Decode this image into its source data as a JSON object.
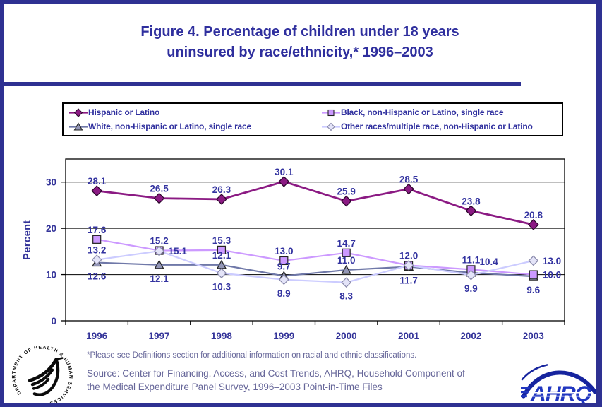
{
  "page": {
    "title_line1": "Figure 4. Percentage of children under 18 years",
    "title_line2": "uninsured by race/ethnicity,* 1996–2003",
    "footnote": "*Please see Definitions section for additional information on racial and ethnic classifications.",
    "source_line1": "Source: Center for Financing, Access, and Cost Trends, AHRQ, Household Component of",
    "source_line2": "the Medical Expenditure Panel Survey, 1996–2003 Point-in-Time Files",
    "colors": {
      "accent_text": "#333399",
      "border": "#2E3192",
      "muted_text": "#666699"
    }
  },
  "logos": {
    "hhs_seal_text": "DEPARTMENT OF HEALTH & HUMAN SERVICES · USA",
    "ahrq_text": "AHRQ"
  },
  "chart_data": {
    "type": "line",
    "title": "Percentage of children under 18 years uninsured by race/ethnicity, 1996–2003",
    "categories": [
      "1996",
      "1997",
      "1998",
      "1999",
      "2000",
      "2001",
      "2002",
      "2003"
    ],
    "ylabel": "Percent",
    "ylim": [
      0,
      35
    ],
    "yticks": [
      0,
      10,
      20,
      30
    ],
    "grid": true,
    "legend_position": "top",
    "text_color": "#333399",
    "label_color": "#3333A0",
    "series": [
      {
        "name": "Hispanic or Latino",
        "values": [
          28.1,
          26.5,
          26.3,
          30.1,
          25.9,
          28.5,
          23.8,
          20.8
        ],
        "color": "#8B1A83",
        "marker": "diamond",
        "marker_fill": "#8B1A83",
        "label_positions": [
          "above",
          "above",
          "above",
          "above",
          "above",
          "above",
          "above",
          "above"
        ]
      },
      {
        "name": "Black, non-Hispanic or Latino, single race",
        "values": [
          17.6,
          15.2,
          15.3,
          13.0,
          14.7,
          12.0,
          11.1,
          10.0
        ],
        "color": "#CC99FF",
        "marker": "square",
        "marker_fill": "#CC99FF",
        "label_positions": [
          "above",
          "above",
          "above",
          "above",
          "above",
          "above",
          "above",
          "right"
        ]
      },
      {
        "name": "White, non-Hispanic or Latino, single race",
        "values": [
          12.6,
          12.1,
          12.1,
          9.7,
          11.0,
          11.7,
          10.4,
          9.6
        ],
        "color": "#6F78A8",
        "marker": "triangle",
        "marker_fill": "#9396B6",
        "label_positions": [
          "below",
          "below",
          "above",
          "above",
          "above",
          "below",
          "above-right",
          "below"
        ]
      },
      {
        "name": "Other races/multiple race, non-Hispanic or Latino",
        "values": [
          13.2,
          15.1,
          10.3,
          8.9,
          8.3,
          12.0,
          9.9,
          13.0
        ],
        "color": "#CCCCFF",
        "marker": "diamond-open",
        "marker_fill": "#E4E4F8",
        "label_positions": [
          "above",
          "right",
          "below",
          "below",
          "below",
          "hidden",
          "below",
          "right"
        ]
      }
    ]
  }
}
